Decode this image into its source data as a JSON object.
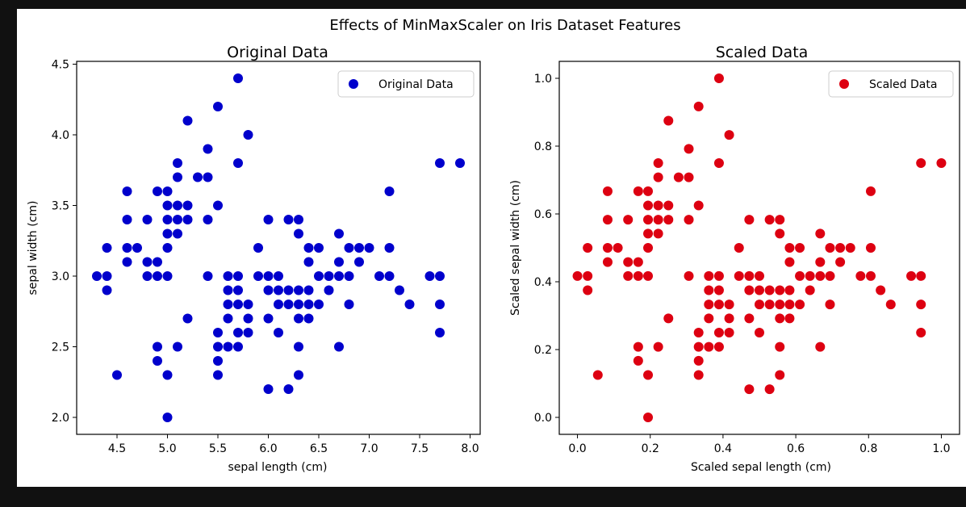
{
  "colors": {
    "background": "#111111",
    "figure": "#ffffff"
  },
  "chart_data": [
    {
      "type": "scatter",
      "suptitle": "Effects of MinMaxScaler on Iris Dataset Features",
      "title": "Original Data",
      "xlabel": "sepal length (cm)",
      "ylabel": "sepal width (cm)",
      "xlim": [
        4.1,
        8.1
      ],
      "ylim": [
        1.88,
        4.52
      ],
      "xticks": [
        4.5,
        5.0,
        5.5,
        6.0,
        6.5,
        7.0,
        7.5,
        8.0
      ],
      "xtick_labels": [
        "4.5",
        "5.0",
        "5.5",
        "6.0",
        "6.5",
        "7.0",
        "7.5",
        "8.0"
      ],
      "yticks": [
        2.0,
        2.5,
        3.0,
        3.5,
        4.0,
        4.5
      ],
      "ytick_labels": [
        "2.0",
        "2.5",
        "3.0",
        "3.5",
        "4.0",
        "4.5"
      ],
      "grid": false,
      "legend": "top-right",
      "series": [
        {
          "name": "Original Data",
          "color": "#0000cc",
          "points": [
            [
              4.3,
              3.0
            ],
            [
              4.4,
              2.9
            ],
            [
              4.4,
              3.0
            ],
            [
              4.4,
              3.2
            ],
            [
              4.5,
              2.3
            ],
            [
              4.6,
              3.1
            ],
            [
              4.6,
              3.2
            ],
            [
              4.6,
              3.4
            ],
            [
              4.6,
              3.6
            ],
            [
              4.7,
              3.2
            ],
            [
              4.8,
              3.0
            ],
            [
              4.8,
              3.1
            ],
            [
              4.8,
              3.4
            ],
            [
              4.9,
              2.4
            ],
            [
              4.9,
              2.5
            ],
            [
              4.9,
              3.0
            ],
            [
              4.9,
              3.1
            ],
            [
              4.9,
              3.6
            ],
            [
              5.0,
              2.0
            ],
            [
              5.0,
              2.3
            ],
            [
              5.0,
              3.0
            ],
            [
              5.0,
              3.2
            ],
            [
              5.0,
              3.3
            ],
            [
              5.0,
              3.4
            ],
            [
              5.0,
              3.5
            ],
            [
              5.0,
              3.6
            ],
            [
              5.1,
              2.5
            ],
            [
              5.1,
              3.3
            ],
            [
              5.1,
              3.4
            ],
            [
              5.1,
              3.5
            ],
            [
              5.1,
              3.7
            ],
            [
              5.1,
              3.8
            ],
            [
              5.2,
              2.7
            ],
            [
              5.2,
              3.4
            ],
            [
              5.2,
              3.5
            ],
            [
              5.2,
              4.1
            ],
            [
              5.3,
              3.7
            ],
            [
              5.4,
              3.0
            ],
            [
              5.4,
              3.4
            ],
            [
              5.4,
              3.7
            ],
            [
              5.4,
              3.9
            ],
            [
              5.5,
              2.3
            ],
            [
              5.5,
              2.4
            ],
            [
              5.5,
              2.5
            ],
            [
              5.5,
              2.6
            ],
            [
              5.5,
              3.5
            ],
            [
              5.5,
              4.2
            ],
            [
              5.6,
              2.5
            ],
            [
              5.6,
              2.7
            ],
            [
              5.6,
              2.8
            ],
            [
              5.6,
              2.9
            ],
            [
              5.6,
              3.0
            ],
            [
              5.7,
              2.5
            ],
            [
              5.7,
              2.6
            ],
            [
              5.7,
              2.8
            ],
            [
              5.7,
              2.9
            ],
            [
              5.7,
              3.0
            ],
            [
              5.7,
              3.8
            ],
            [
              5.7,
              4.4
            ],
            [
              5.8,
              2.6
            ],
            [
              5.8,
              2.7
            ],
            [
              5.8,
              2.8
            ],
            [
              5.8,
              4.0
            ],
            [
              5.9,
              3.0
            ],
            [
              5.9,
              3.2
            ],
            [
              6.0,
              2.2
            ],
            [
              6.0,
              2.7
            ],
            [
              6.0,
              2.9
            ],
            [
              6.0,
              3.0
            ],
            [
              6.0,
              3.4
            ],
            [
              6.1,
              2.6
            ],
            [
              6.1,
              2.8
            ],
            [
              6.1,
              2.9
            ],
            [
              6.1,
              3.0
            ],
            [
              6.2,
              2.2
            ],
            [
              6.2,
              2.8
            ],
            [
              6.2,
              2.9
            ],
            [
              6.2,
              3.4
            ],
            [
              6.3,
              2.3
            ],
            [
              6.3,
              2.5
            ],
            [
              6.3,
              2.7
            ],
            [
              6.3,
              2.8
            ],
            [
              6.3,
              2.9
            ],
            [
              6.3,
              3.3
            ],
            [
              6.3,
              3.4
            ],
            [
              6.4,
              2.7
            ],
            [
              6.4,
              2.8
            ],
            [
              6.4,
              2.9
            ],
            [
              6.4,
              3.1
            ],
            [
              6.4,
              3.2
            ],
            [
              6.5,
              2.8
            ],
            [
              6.5,
              3.0
            ],
            [
              6.5,
              3.2
            ],
            [
              6.6,
              2.9
            ],
            [
              6.6,
              3.0
            ],
            [
              6.7,
              2.5
            ],
            [
              6.7,
              3.0
            ],
            [
              6.7,
              3.1
            ],
            [
              6.7,
              3.3
            ],
            [
              6.8,
              2.8
            ],
            [
              6.8,
              3.0
            ],
            [
              6.8,
              3.2
            ],
            [
              6.9,
              3.1
            ],
            [
              6.9,
              3.2
            ],
            [
              7.0,
              3.2
            ],
            [
              7.1,
              3.0
            ],
            [
              7.2,
              3.0
            ],
            [
              7.2,
              3.2
            ],
            [
              7.2,
              3.6
            ],
            [
              7.3,
              2.9
            ],
            [
              7.4,
              2.8
            ],
            [
              7.6,
              3.0
            ],
            [
              7.7,
              2.6
            ],
            [
              7.7,
              2.8
            ],
            [
              7.7,
              3.0
            ],
            [
              7.7,
              3.8
            ],
            [
              7.9,
              3.8
            ]
          ]
        }
      ]
    },
    {
      "type": "scatter",
      "title": "Scaled Data",
      "xlabel": "Scaled sepal length (cm)",
      "ylabel": "Scaled sepal width (cm)",
      "xlim": [
        -0.05,
        1.05
      ],
      "ylim": [
        -0.05,
        1.05
      ],
      "xticks": [
        0.0,
        0.2,
        0.4,
        0.6,
        0.8,
        1.0
      ],
      "xtick_labels": [
        "0.0",
        "0.2",
        "0.4",
        "0.6",
        "0.8",
        "1.0"
      ],
      "yticks": [
        0.0,
        0.2,
        0.4,
        0.6,
        0.8,
        1.0
      ],
      "ytick_labels": [
        "0.0",
        "0.2",
        "0.4",
        "0.6",
        "0.8",
        "1.0"
      ],
      "grid": false,
      "legend": "top-right",
      "series": [
        {
          "name": "Scaled Data",
          "color": "#dd0011",
          "points": [
            [
              0.0,
              0.417
            ],
            [
              0.028,
              0.375
            ],
            [
              0.028,
              0.417
            ],
            [
              0.028,
              0.5
            ],
            [
              0.056,
              0.125
            ],
            [
              0.083,
              0.458
            ],
            [
              0.083,
              0.5
            ],
            [
              0.083,
              0.583
            ],
            [
              0.083,
              0.667
            ],
            [
              0.111,
              0.5
            ],
            [
              0.139,
              0.417
            ],
            [
              0.139,
              0.458
            ],
            [
              0.139,
              0.583
            ],
            [
              0.167,
              0.167
            ],
            [
              0.167,
              0.208
            ],
            [
              0.167,
              0.417
            ],
            [
              0.167,
              0.458
            ],
            [
              0.167,
              0.667
            ],
            [
              0.194,
              0.0
            ],
            [
              0.194,
              0.125
            ],
            [
              0.194,
              0.417
            ],
            [
              0.194,
              0.5
            ],
            [
              0.194,
              0.542
            ],
            [
              0.194,
              0.583
            ],
            [
              0.194,
              0.625
            ],
            [
              0.194,
              0.667
            ],
            [
              0.222,
              0.208
            ],
            [
              0.222,
              0.542
            ],
            [
              0.222,
              0.583
            ],
            [
              0.222,
              0.625
            ],
            [
              0.222,
              0.708
            ],
            [
              0.222,
              0.75
            ],
            [
              0.25,
              0.292
            ],
            [
              0.25,
              0.583
            ],
            [
              0.25,
              0.625
            ],
            [
              0.25,
              0.875
            ],
            [
              0.278,
              0.708
            ],
            [
              0.306,
              0.417
            ],
            [
              0.306,
              0.583
            ],
            [
              0.306,
              0.708
            ],
            [
              0.306,
              0.792
            ],
            [
              0.333,
              0.125
            ],
            [
              0.333,
              0.167
            ],
            [
              0.333,
              0.208
            ],
            [
              0.333,
              0.25
            ],
            [
              0.333,
              0.625
            ],
            [
              0.333,
              0.917
            ],
            [
              0.361,
              0.208
            ],
            [
              0.361,
              0.292
            ],
            [
              0.361,
              0.333
            ],
            [
              0.361,
              0.375
            ],
            [
              0.361,
              0.417
            ],
            [
              0.389,
              0.208
            ],
            [
              0.389,
              0.25
            ],
            [
              0.389,
              0.333
            ],
            [
              0.389,
              0.375
            ],
            [
              0.389,
              0.417
            ],
            [
              0.389,
              0.75
            ],
            [
              0.389,
              1.0
            ],
            [
              0.417,
              0.25
            ],
            [
              0.417,
              0.292
            ],
            [
              0.417,
              0.333
            ],
            [
              0.417,
              0.833
            ],
            [
              0.444,
              0.417
            ],
            [
              0.444,
              0.5
            ],
            [
              0.472,
              0.083
            ],
            [
              0.472,
              0.292
            ],
            [
              0.472,
              0.375
            ],
            [
              0.472,
              0.417
            ],
            [
              0.472,
              0.583
            ],
            [
              0.5,
              0.25
            ],
            [
              0.5,
              0.333
            ],
            [
              0.5,
              0.375
            ],
            [
              0.5,
              0.417
            ],
            [
              0.528,
              0.083
            ],
            [
              0.528,
              0.333
            ],
            [
              0.528,
              0.375
            ],
            [
              0.528,
              0.583
            ],
            [
              0.556,
              0.125
            ],
            [
              0.556,
              0.208
            ],
            [
              0.556,
              0.292
            ],
            [
              0.556,
              0.333
            ],
            [
              0.556,
              0.375
            ],
            [
              0.556,
              0.542
            ],
            [
              0.556,
              0.583
            ],
            [
              0.583,
              0.292
            ],
            [
              0.583,
              0.333
            ],
            [
              0.583,
              0.375
            ],
            [
              0.583,
              0.458
            ],
            [
              0.583,
              0.5
            ],
            [
              0.611,
              0.333
            ],
            [
              0.611,
              0.417
            ],
            [
              0.611,
              0.5
            ],
            [
              0.639,
              0.375
            ],
            [
              0.639,
              0.417
            ],
            [
              0.667,
              0.208
            ],
            [
              0.667,
              0.417
            ],
            [
              0.667,
              0.458
            ],
            [
              0.667,
              0.542
            ],
            [
              0.694,
              0.333
            ],
            [
              0.694,
              0.417
            ],
            [
              0.694,
              0.5
            ],
            [
              0.722,
              0.458
            ],
            [
              0.722,
              0.5
            ],
            [
              0.75,
              0.5
            ],
            [
              0.778,
              0.417
            ],
            [
              0.806,
              0.417
            ],
            [
              0.806,
              0.5
            ],
            [
              0.806,
              0.667
            ],
            [
              0.833,
              0.375
            ],
            [
              0.861,
              0.333
            ],
            [
              0.917,
              0.417
            ],
            [
              0.944,
              0.25
            ],
            [
              0.944,
              0.333
            ],
            [
              0.944,
              0.417
            ],
            [
              0.944,
              0.75
            ],
            [
              1.0,
              0.75
            ]
          ]
        }
      ]
    }
  ]
}
